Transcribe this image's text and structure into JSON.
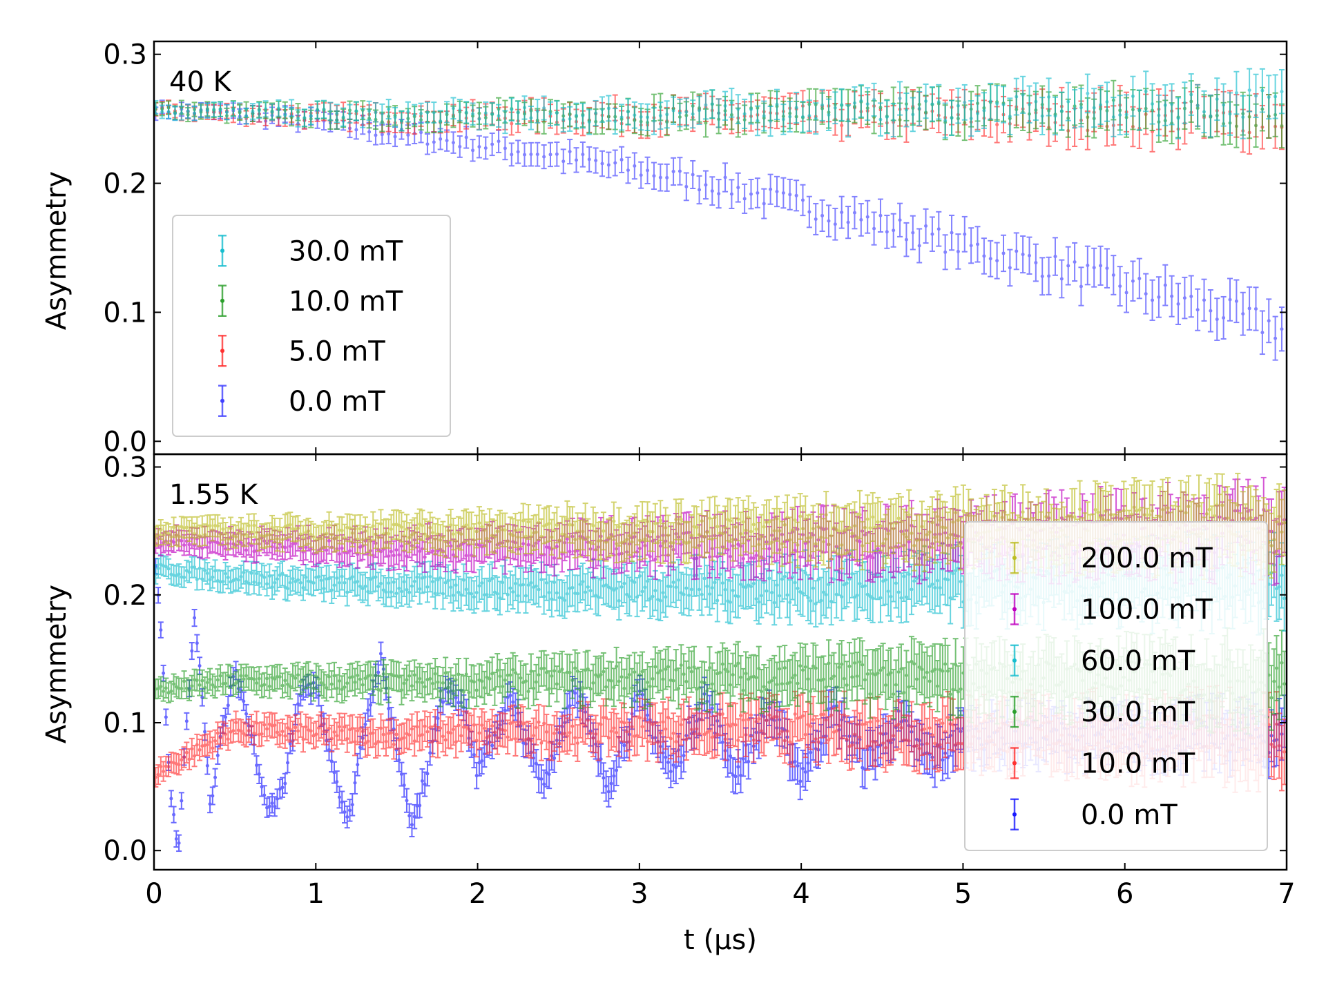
{
  "chart_data": [
    {
      "type": "scatter",
      "panel_label": "40 K",
      "xlabel": "",
      "ylabel": "Asymmetry",
      "xlim": [
        0,
        7
      ],
      "ylim": [
        -0.01,
        0.31
      ],
      "yticks": [
        "0.0",
        "0.1",
        "0.2",
        "0.3"
      ],
      "grid": false,
      "legend_position": "lower-left",
      "series": [
        {
          "name": "30.0 mT",
          "color": "#17becf",
          "error": 0.01,
          "x": [
            0,
            0.5,
            1,
            1.5,
            2,
            2.5,
            3,
            3.5,
            4,
            4.5,
            5,
            5.5,
            6,
            6.5,
            7
          ],
          "y": [
            0.257,
            0.255,
            0.254,
            0.253,
            0.253,
            0.253,
            0.254,
            0.255,
            0.256,
            0.257,
            0.258,
            0.259,
            0.26,
            0.262,
            0.263
          ]
        },
        {
          "name": "10.0 mT",
          "color": "#2ca02c",
          "error": 0.01,
          "x": [
            0,
            0.5,
            1,
            1.5,
            2,
            2.5,
            3,
            3.5,
            4,
            4.5,
            5,
            5.5,
            6,
            6.5,
            7
          ],
          "y": [
            0.257,
            0.255,
            0.253,
            0.252,
            0.252,
            0.253,
            0.254,
            0.254,
            0.255,
            0.255,
            0.256,
            0.256,
            0.255,
            0.255,
            0.254
          ]
        },
        {
          "name": "5.0 mT",
          "color": "#ff3030",
          "error": 0.01,
          "x": [
            0,
            0.5,
            1,
            1.5,
            2,
            2.5,
            3,
            3.5,
            4,
            4.5,
            5,
            5.5,
            6,
            6.5,
            7
          ],
          "y": [
            0.257,
            0.254,
            0.252,
            0.251,
            0.251,
            0.252,
            0.252,
            0.252,
            0.252,
            0.252,
            0.252,
            0.251,
            0.251,
            0.25,
            0.25
          ]
        },
        {
          "name": "0.0 mT",
          "color": "#4040ff",
          "error": 0.01,
          "x": [
            0,
            0.5,
            1,
            1.5,
            2,
            2.5,
            3,
            3.5,
            4,
            4.5,
            5,
            5.5,
            6,
            6.5,
            7
          ],
          "y": [
            0.257,
            0.254,
            0.248,
            0.238,
            0.23,
            0.221,
            0.21,
            0.198,
            0.183,
            0.168,
            0.152,
            0.137,
            0.121,
            0.104,
            0.086
          ]
        }
      ]
    },
    {
      "type": "scatter",
      "panel_label": "1.55 K",
      "xlabel": "t (μs)",
      "ylabel": "Asymmetry",
      "xlim": [
        0,
        7
      ],
      "ylim": [
        -0.015,
        0.31
      ],
      "xticks": [
        "0",
        "1",
        "2",
        "3",
        "4",
        "5",
        "6",
        "7"
      ],
      "yticks": [
        "0.0",
        "0.1",
        "0.2",
        "0.3"
      ],
      "grid": false,
      "legend_position": "lower-right",
      "series": [
        {
          "name": "200.0 mT",
          "color": "#bcbd22",
          "error": 0.015,
          "x": [
            0,
            0.5,
            1,
            1.5,
            2,
            2.5,
            3,
            3.5,
            4,
            4.5,
            5,
            5.5,
            6,
            6.5,
            7
          ],
          "y": [
            0.25,
            0.249,
            0.249,
            0.249,
            0.249,
            0.25,
            0.25,
            0.25,
            0.251,
            0.251,
            0.252,
            0.252,
            0.253,
            0.253,
            0.254
          ]
        },
        {
          "name": "100.0 mT",
          "color": "#c000c0",
          "error": 0.015,
          "x": [
            0,
            0.5,
            1,
            1.5,
            2,
            2.5,
            3,
            3.5,
            4,
            4.5,
            5,
            5.5,
            6,
            6.5,
            7
          ],
          "y": [
            0.243,
            0.24,
            0.238,
            0.237,
            0.237,
            0.237,
            0.238,
            0.239,
            0.24,
            0.241,
            0.243,
            0.245,
            0.247,
            0.249,
            0.25
          ]
        },
        {
          "name": "60.0 mT",
          "color": "#17becf",
          "error": 0.015,
          "x": [
            0,
            0.5,
            1,
            1.5,
            2,
            2.5,
            3,
            3.5,
            4,
            4.5,
            5,
            5.5,
            6,
            6.5,
            7
          ],
          "y": [
            0.22,
            0.214,
            0.209,
            0.207,
            0.206,
            0.205,
            0.205,
            0.205,
            0.205,
            0.206,
            0.207,
            0.208,
            0.209,
            0.21,
            0.212
          ]
        },
        {
          "name": "30.0 mT",
          "color": "#2ca02c",
          "error": 0.015,
          "x": [
            0,
            0.5,
            1,
            1.5,
            2,
            2.5,
            3,
            3.5,
            4,
            4.5,
            5,
            5.5,
            6,
            6.5,
            7
          ],
          "y": [
            0.125,
            0.133,
            0.132,
            0.131,
            0.132,
            0.134,
            0.135,
            0.136,
            0.136,
            0.135,
            0.134,
            0.134,
            0.133,
            0.133,
            0.133
          ]
        },
        {
          "name": "10.0 mT",
          "color": "#ff3030",
          "error": 0.015,
          "x": [
            0,
            0.5,
            1,
            1.5,
            2,
            2.5,
            3,
            3.5,
            4,
            4.5,
            5,
            5.5,
            6,
            6.5,
            7
          ],
          "y": [
            0.06,
            0.095,
            0.092,
            0.09,
            0.092,
            0.093,
            0.095,
            0.096,
            0.095,
            0.093,
            0.092,
            0.09,
            0.089,
            0.088,
            0.087
          ]
        },
        {
          "name": "0.0 mT",
          "color": "#1a1aff",
          "error": 0.012,
          "x": [
            0,
            0.05,
            0.1,
            0.15,
            0.2,
            0.25,
            0.3,
            0.35,
            0.4,
            0.5,
            0.6,
            0.7,
            0.8,
            0.9,
            1.0,
            1.1,
            1.2,
            1.3,
            1.4,
            1.5,
            1.6,
            1.7,
            1.8,
            1.9,
            2.0,
            2.2,
            2.4,
            2.6,
            2.8,
            3.0,
            3.2,
            3.4,
            3.6,
            3.8,
            4.0,
            4.2,
            4.4,
            4.6,
            4.8,
            5.0
          ],
          "y": [
            0.24,
            0.16,
            0.05,
            0.0,
            0.1,
            0.18,
            0.12,
            0.03,
            0.08,
            0.14,
            0.09,
            0.03,
            0.05,
            0.12,
            0.13,
            0.07,
            0.02,
            0.1,
            0.15,
            0.08,
            0.02,
            0.07,
            0.13,
            0.12,
            0.06,
            0.12,
            0.05,
            0.13,
            0.05,
            0.12,
            0.06,
            0.12,
            0.06,
            0.11,
            0.06,
            0.11,
            0.07,
            0.1,
            0.07,
            0.09
          ]
        }
      ]
    }
  ]
}
